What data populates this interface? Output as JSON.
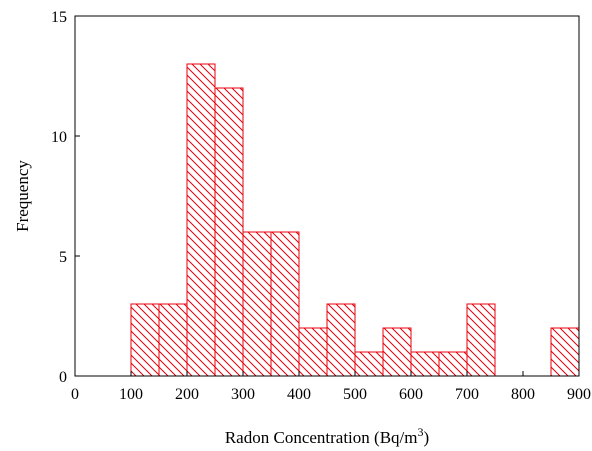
{
  "chart_data": {
    "type": "bar",
    "subtype": "histogram",
    "xlabel": "Radon Concentration (Bq/m",
    "xlabel_superscript": "3",
    "xlabel_suffix": ")",
    "ylabel": "Frequency",
    "xlim": [
      0,
      900
    ],
    "ylim": [
      0,
      15
    ],
    "x_ticks": [
      "0",
      "100",
      "200",
      "300",
      "400",
      "500",
      "600",
      "700",
      "800",
      "900"
    ],
    "y_ticks": [
      "0",
      "5",
      "10",
      "15"
    ],
    "bin_width": 50,
    "bins": [
      {
        "start": 100,
        "end": 150,
        "value": 3
      },
      {
        "start": 150,
        "end": 200,
        "value": 3
      },
      {
        "start": 200,
        "end": 250,
        "value": 13
      },
      {
        "start": 250,
        "end": 300,
        "value": 12
      },
      {
        "start": 300,
        "end": 350,
        "value": 6
      },
      {
        "start": 350,
        "end": 400,
        "value": 6
      },
      {
        "start": 400,
        "end": 450,
        "value": 2
      },
      {
        "start": 450,
        "end": 500,
        "value": 3
      },
      {
        "start": 500,
        "end": 550,
        "value": 1
      },
      {
        "start": 550,
        "end": 600,
        "value": 2
      },
      {
        "start": 600,
        "end": 650,
        "value": 1
      },
      {
        "start": 650,
        "end": 700,
        "value": 1
      },
      {
        "start": 700,
        "end": 750,
        "value": 3
      },
      {
        "start": 850,
        "end": 900,
        "value": 2
      }
    ],
    "grid": false,
    "bar_color": "#e8000b",
    "fill_pattern": "diagonal-hatch",
    "axis_color": "#000000"
  }
}
